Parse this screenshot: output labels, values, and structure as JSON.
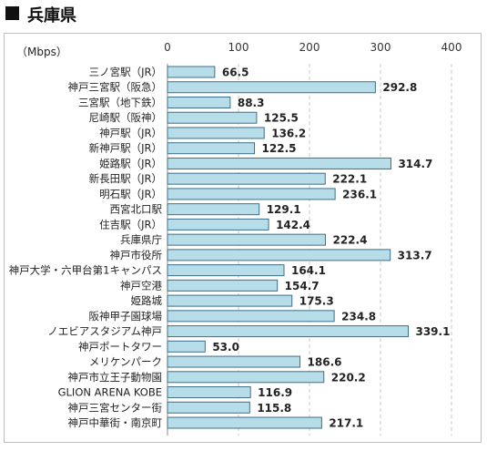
{
  "header": {
    "title": "兵庫県"
  },
  "chart_data": {
    "type": "bar",
    "orientation": "horizontal",
    "unit_label": "（Mbps）",
    "xlim": [
      0,
      400
    ],
    "xticks": [
      0,
      100,
      200,
      300,
      400
    ],
    "grid": true,
    "bar_color": "#b7dde8",
    "bar_border": "#3d6e8c",
    "categories": [
      "三ノ宮駅（JR）",
      "神戸三宮駅（阪急）",
      "三宮駅（地下鉄）",
      "尼崎駅（阪神）",
      "神戸駅（JR）",
      "新神戸駅（JR）",
      "姫路駅（JR）",
      "新長田駅（JR）",
      "明石駅（JR）",
      "西宮北口駅",
      "住吉駅（JR）",
      "兵庫県庁",
      "神戸市役所",
      "神戸大学・六甲台第1キャンパス",
      "神戸空港",
      "姫路城",
      "阪神甲子園球場",
      "ノエビアスタジアム神戸",
      "神戸ポートタワー",
      "メリケンパーク",
      "神戸市立王子動物園",
      "GLION ARENA KOBE",
      "神戸三宮センター街",
      "神戸中華街・南京町"
    ],
    "values": [
      66.5,
      292.8,
      88.3,
      125.5,
      136.2,
      122.5,
      314.7,
      222.1,
      236.1,
      129.1,
      142.4,
      222.4,
      313.7,
      164.1,
      154.7,
      175.3,
      234.8,
      339.1,
      53.0,
      186.6,
      220.2,
      116.9,
      115.8,
      217.1
    ],
    "value_labels": [
      "66.5",
      "292.8",
      "88.3",
      "125.5",
      "136.2",
      "122.5",
      "314.7",
      "222.1",
      "236.1",
      "129.1",
      "142.4",
      "222.4",
      "313.7",
      "164.1",
      "154.7",
      "175.3",
      "234.8",
      "339.1",
      "53.0",
      "186.6",
      "220.2",
      "116.9",
      "115.8",
      "217.1"
    ]
  }
}
